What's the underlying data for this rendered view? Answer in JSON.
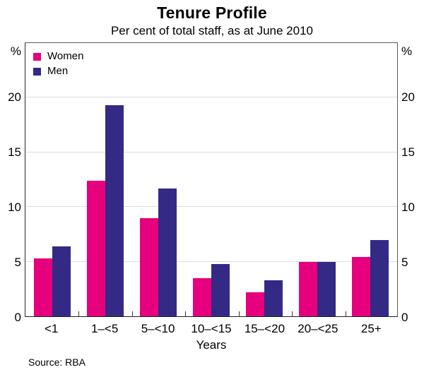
{
  "title": "Tenure Profile",
  "subtitle": "Per cent of total staff, as at June 2010",
  "source": "Source: RBA",
  "colors": {
    "women": "#e6007e",
    "men": "#342a85",
    "gridline": "#dcdcdc"
  },
  "legend": {
    "items": [
      {
        "label": "Women",
        "color": "#e6007e"
      },
      {
        "label": "Men",
        "color": "#342a85"
      }
    ]
  },
  "chart_data": {
    "type": "bar",
    "title": "Tenure Profile",
    "subtitle": "Per cent of total staff, as at June 2010",
    "categories": [
      "<1",
      "1–<5",
      "5–<10",
      "10–<15",
      "15–<20",
      "20–<25",
      "25+"
    ],
    "series": [
      {
        "name": "Women",
        "color": "#e6007e",
        "values": [
          5.3,
          12.4,
          9.0,
          3.5,
          2.2,
          5.0,
          5.4
        ]
      },
      {
        "name": "Men",
        "color": "#342a85",
        "values": [
          6.4,
          19.3,
          11.7,
          4.8,
          3.3,
          5.0,
          7.0
        ]
      }
    ],
    "xlabel": "Years",
    "ylabel": "%",
    "unit_label": "%",
    "ylim": [
      0,
      25
    ],
    "yticks": [
      0,
      5,
      10,
      15,
      20
    ],
    "gridlines": [
      5,
      10,
      15,
      20
    ],
    "grid": true,
    "legend_position": "top-left",
    "dual_axis_labels": true,
    "source": "Source: RBA"
  }
}
